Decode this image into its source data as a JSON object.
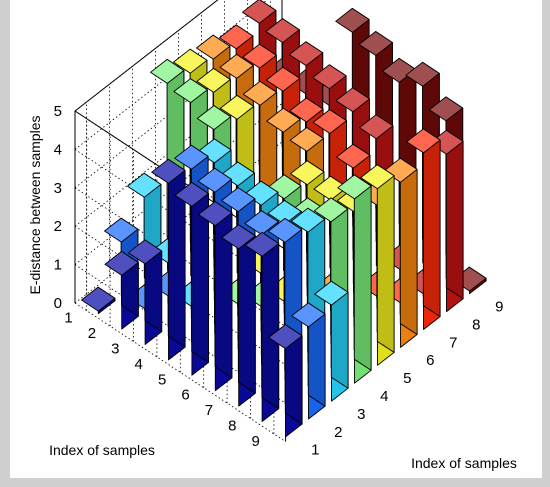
{
  "chart_data": {
    "type": "bar3d",
    "zlabel": "E-distance between samples",
    "xlabel": "Index of samples",
    "ylabel": "Index of samples",
    "row_index": [
      1,
      2,
      3,
      4,
      5,
      6,
      7,
      8,
      9
    ],
    "col_index": [
      1,
      2,
      3,
      4,
      5,
      6,
      7,
      8,
      9
    ],
    "row_ticks": [
      "1",
      "2",
      "3",
      "4",
      "5",
      "6",
      "7",
      "8",
      "9"
    ],
    "col_ticks": [
      "1",
      "2",
      "3",
      "4",
      "5",
      "6",
      "7",
      "8",
      "9"
    ],
    "z_ticks": [
      "0",
      "1",
      "2",
      "3",
      "4",
      "5"
    ],
    "zlim": [
      0,
      5
    ],
    "grid": true,
    "colormap": "jet",
    "column_colors": [
      "#0a0aa6",
      "#1a6cff",
      "#26d6ff",
      "#7cf27c",
      "#f6f21e",
      "#ff8a10",
      "#ff2a0a",
      "#c41212",
      "#7a0a0a"
    ],
    "values": [
      [
        0.0,
        1.4,
        2.1,
        4.6,
        4.4,
        4.3,
        4.1,
        4.3,
        2.3
      ],
      [
        1.4,
        0.0,
        0.8,
        4.5,
        4.3,
        4.2,
        4.0,
        4.2,
        2.4
      ],
      [
        2.1,
        0.8,
        0.0,
        4.2,
        4.0,
        3.9,
        3.8,
        4.0,
        2.5
      ],
      [
        4.6,
        4.5,
        4.2,
        0.0,
        0.4,
        3.6,
        3.4,
        3.8,
        4.8
      ],
      [
        4.4,
        4.3,
        4.0,
        0.4,
        0.0,
        3.5,
        3.5,
        3.6,
        4.6
      ],
      [
        4.3,
        4.2,
        3.9,
        3.6,
        3.5,
        0.0,
        3.0,
        3.3,
        4.3
      ],
      [
        4.1,
        4.0,
        3.8,
        3.4,
        3.5,
        3.0,
        0.0,
        0.3,
        4.6
      ],
      [
        4.3,
        4.2,
        4.0,
        3.8,
        3.6,
        3.3,
        0.3,
        0.0,
        4.1
      ],
      [
        2.3,
        2.4,
        2.5,
        4.8,
        4.6,
        4.3,
        4.6,
        4.1,
        0.0
      ]
    ]
  }
}
